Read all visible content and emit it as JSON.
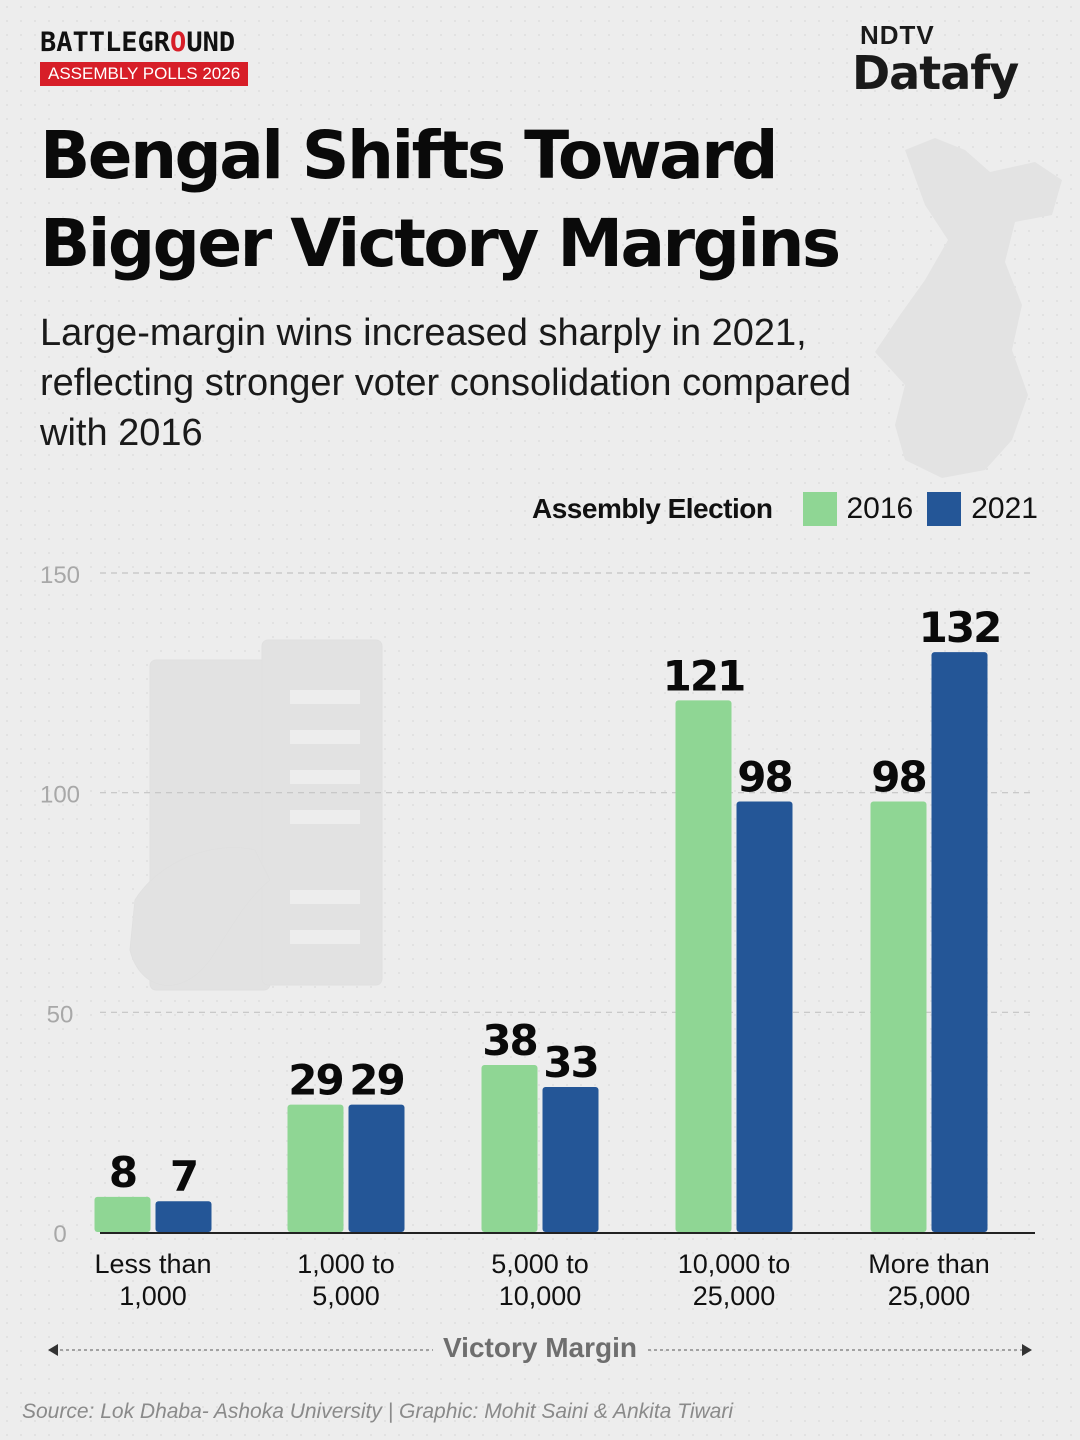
{
  "header": {
    "brand": {
      "part1": "BATTLEGR",
      "part2": "O",
      "part3": "UND"
    },
    "brand_tag": "ASSEMBLY POLLS 2026",
    "logo_top": "NDTV",
    "logo_main": "Datafy"
  },
  "title": "Bengal Shifts Toward Bigger Victory Margins",
  "subtitle": "Large-margin wins increased sharply in 2021, reflecting stronger voter consolidation compared with 2016",
  "legend": {
    "title": "Assembly Election",
    "items": [
      {
        "label": "2016",
        "color": "#8fd694"
      },
      {
        "label": "2021",
        "color": "#245697"
      }
    ]
  },
  "chart_data": {
    "type": "bar",
    "categories": [
      [
        "Less than",
        "1,000"
      ],
      [
        "1,000 to",
        "5,000"
      ],
      [
        "5,000 to",
        "10,000"
      ],
      [
        "10,000 to",
        "25,000"
      ],
      [
        "More than",
        "25,000"
      ]
    ],
    "series": [
      {
        "name": "2016",
        "color": "#8fd694",
        "values": [
          8,
          29,
          38,
          121,
          98
        ]
      },
      {
        "name": "2021",
        "color": "#245697",
        "values": [
          7,
          29,
          33,
          98,
          132
        ]
      }
    ],
    "ylim": [
      0,
      150
    ],
    "yticks": [
      0,
      50,
      100,
      150
    ],
    "grid": true,
    "xlabel": "Victory Margin",
    "ylabel": "",
    "legend_position": "top-right"
  },
  "source": "Source: Lok Dhaba- Ashoka University | Graphic: Mohit Saini & Ankita Tiwari"
}
